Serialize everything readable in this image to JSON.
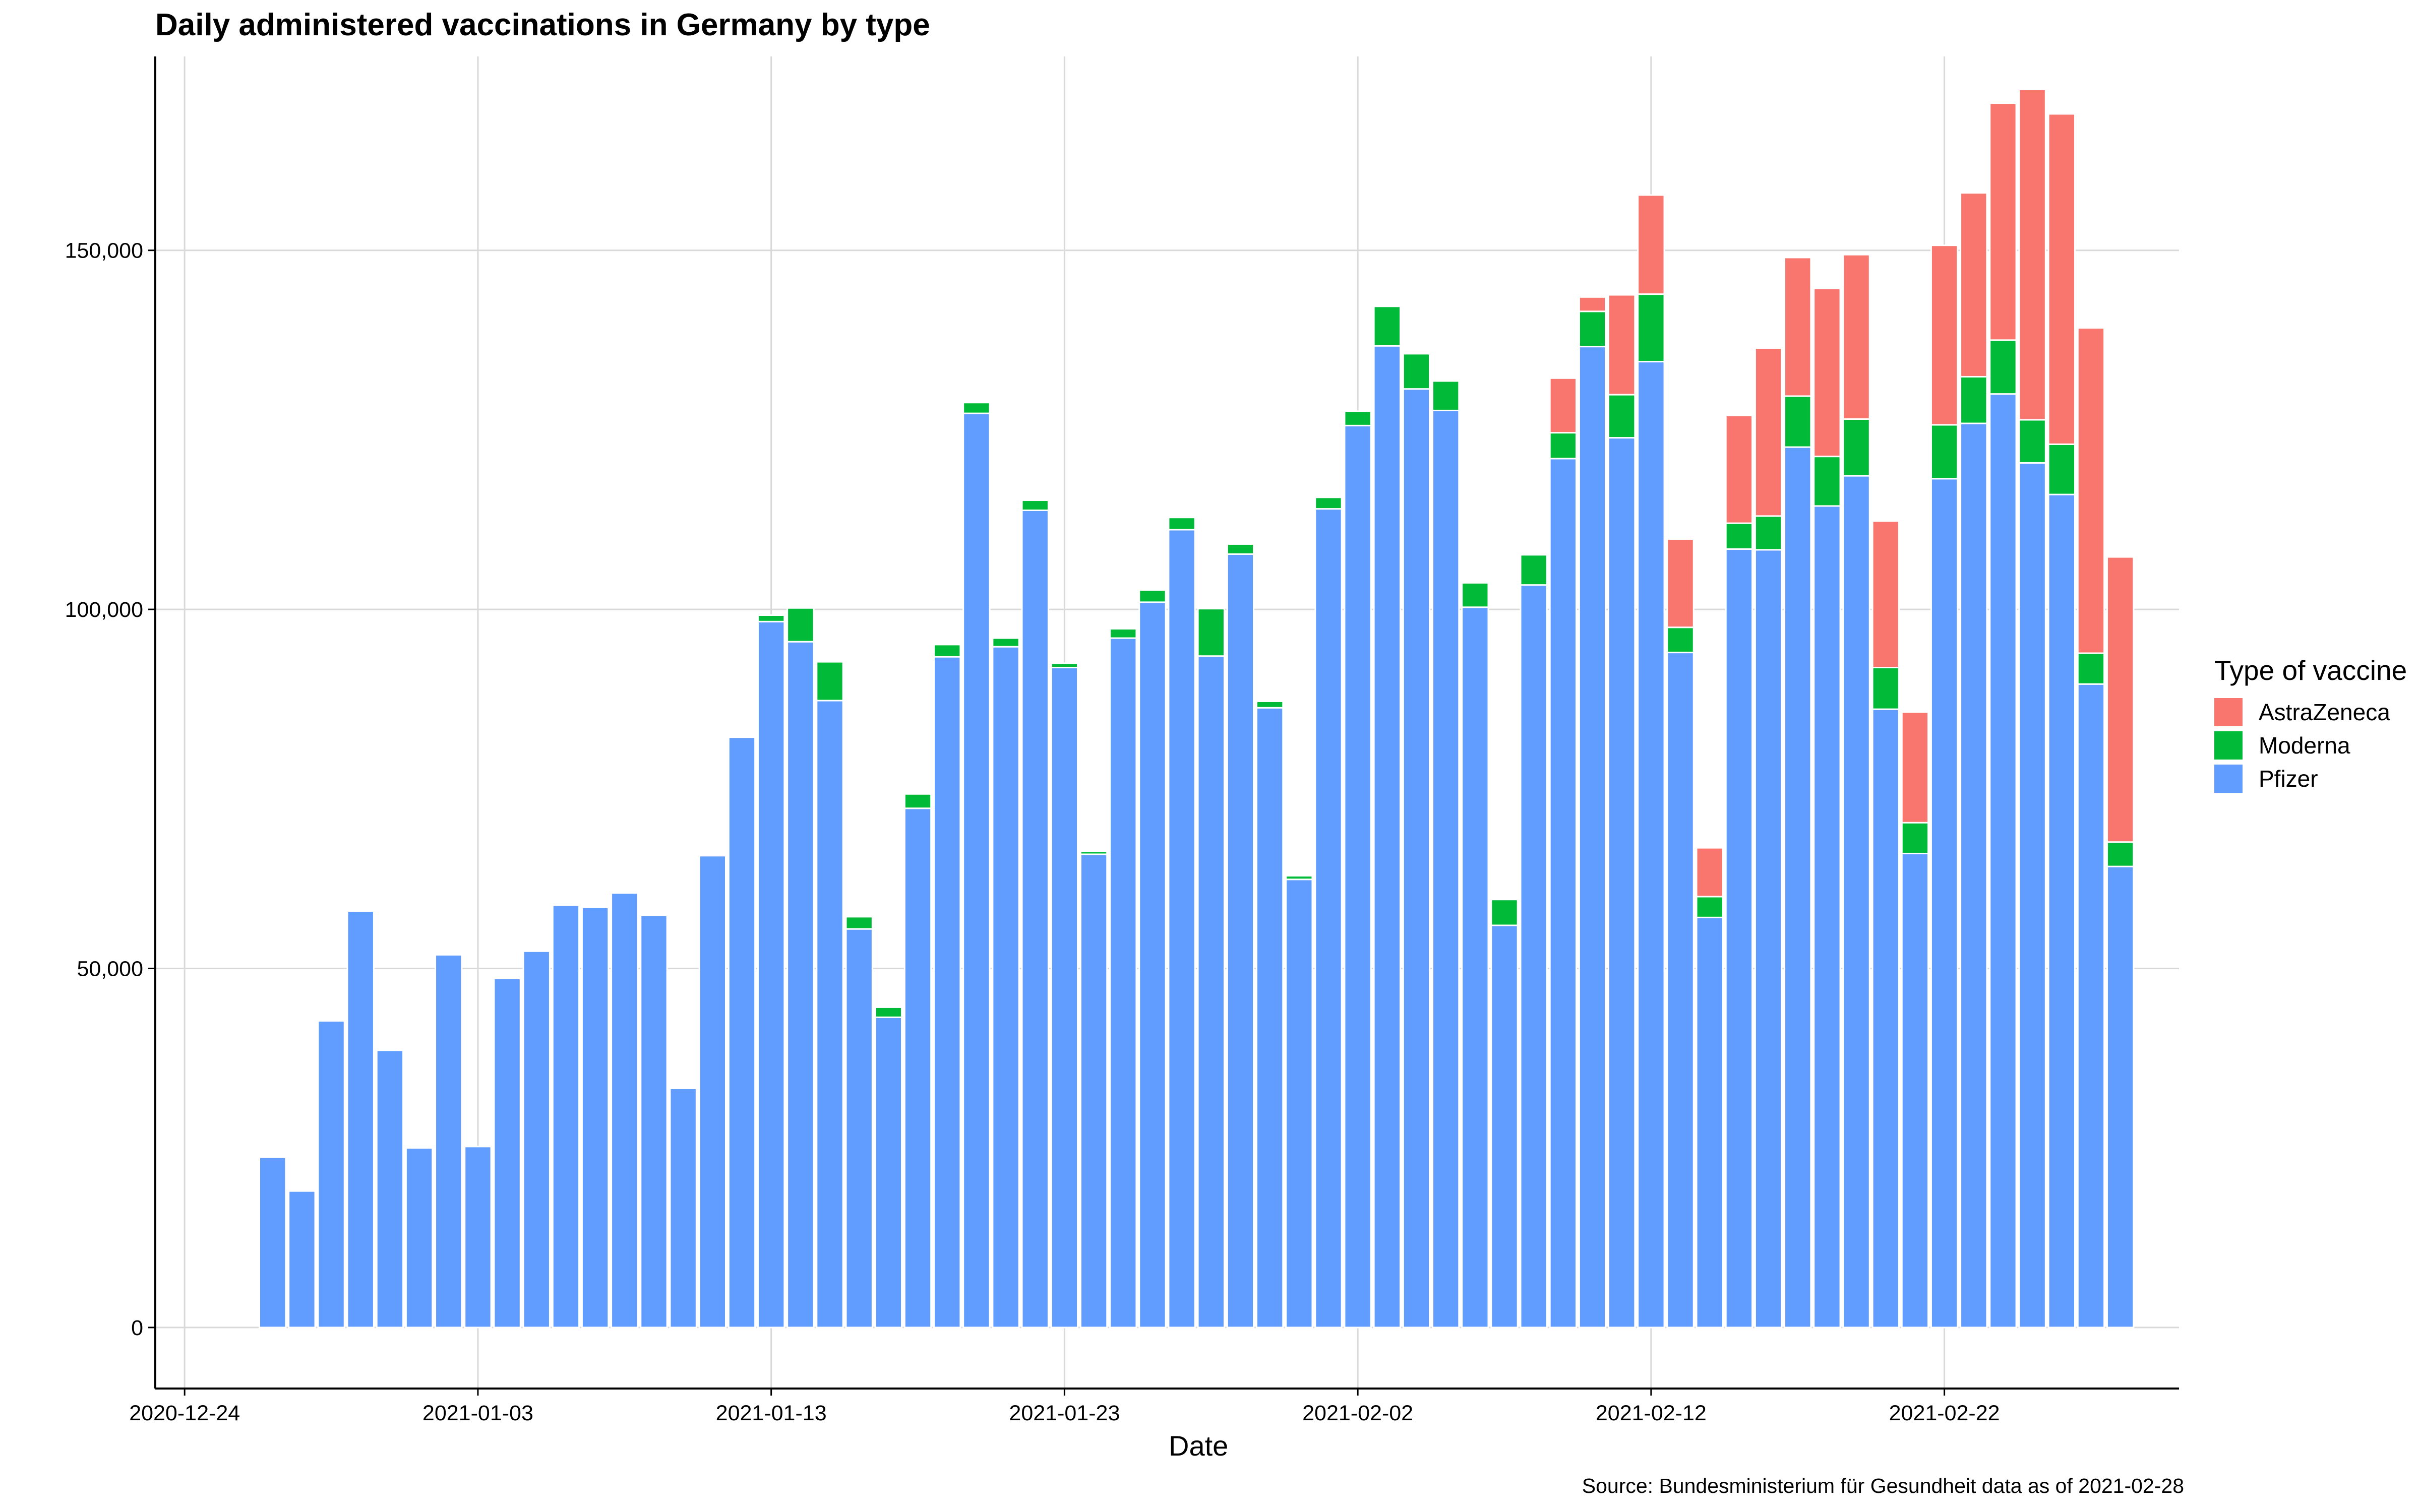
{
  "chart_data": {
    "type": "bar",
    "stacked": true,
    "title": "Daily administered vaccinations in Germany by type",
    "xlabel": "Date",
    "ylabel": "",
    "caption": "Source: Bundesministerium für Gesundheit data as of 2021-02-28",
    "legend_title": "Type of vaccine",
    "legend_position": "right",
    "grid": true,
    "ylim": [
      -8500,
      177000
    ],
    "yticks": [
      0,
      50000,
      100000,
      150000
    ],
    "ytick_labels": [
      "0",
      "50,000",
      "100,000",
      "150,000"
    ],
    "xlim": [
      "2020-12-23",
      "2021-03-02"
    ],
    "xticks": [
      "2020-12-24",
      "2021-01-03",
      "2021-01-13",
      "2021-01-23",
      "2021-02-02",
      "2021-02-12",
      "2021-02-22"
    ],
    "legend": [
      {
        "name": "AstraZeneca",
        "color": "#F8766D"
      },
      {
        "name": "Moderna",
        "color": "#00BA38"
      },
      {
        "name": "Pfizer",
        "color": "#619CFF"
      }
    ],
    "stack_order": [
      "Pfizer",
      "Moderna",
      "AstraZeneca"
    ],
    "categories": [
      "2020-12-27",
      "2020-12-28",
      "2020-12-29",
      "2020-12-30",
      "2020-12-31",
      "2021-01-01",
      "2021-01-02",
      "2021-01-03",
      "2021-01-04",
      "2021-01-05",
      "2021-01-06",
      "2021-01-07",
      "2021-01-08",
      "2021-01-09",
      "2021-01-10",
      "2021-01-11",
      "2021-01-12",
      "2021-01-13",
      "2021-01-14",
      "2021-01-15",
      "2021-01-16",
      "2021-01-17",
      "2021-01-18",
      "2021-01-19",
      "2021-01-20",
      "2021-01-21",
      "2021-01-22",
      "2021-01-23",
      "2021-01-24",
      "2021-01-25",
      "2021-01-26",
      "2021-01-27",
      "2021-01-28",
      "2021-01-29",
      "2021-01-30",
      "2021-01-31",
      "2021-02-01",
      "2021-02-02",
      "2021-02-03",
      "2021-02-04",
      "2021-02-05",
      "2021-02-06",
      "2021-02-07",
      "2021-02-08",
      "2021-02-09",
      "2021-02-10",
      "2021-02-11",
      "2021-02-12",
      "2021-02-13",
      "2021-02-14",
      "2021-02-15",
      "2021-02-16",
      "2021-02-17",
      "2021-02-18",
      "2021-02-19",
      "2021-02-20",
      "2021-02-21",
      "2021-02-22",
      "2021-02-23",
      "2021-02-24",
      "2021-02-25",
      "2021-02-26",
      "2021-02-27",
      "2021-02-28"
    ],
    "series": [
      {
        "name": "Pfizer",
        "color": "#619CFF",
        "values": [
          23700,
          19000,
          42700,
          58000,
          38600,
          25000,
          51900,
          25200,
          48600,
          52400,
          58800,
          58500,
          60500,
          57400,
          33300,
          65700,
          82200,
          98300,
          95500,
          87300,
          55500,
          43200,
          72300,
          93400,
          127300,
          94800,
          113800,
          91900,
          65900,
          96000,
          101000,
          111100,
          93500,
          107700,
          86300,
          62400,
          114000,
          125600,
          136700,
          130700,
          127700,
          100300,
          56000,
          103400,
          121000,
          136600,
          123900,
          134500,
          94000,
          57100,
          108400,
          108300,
          122600,
          114400,
          118600,
          86100,
          66000,
          118200,
          125900,
          130000,
          120400,
          116000,
          89600,
          64200
        ]
      },
      {
        "name": "Moderna",
        "color": "#00BA38",
        "values": [
          0,
          0,
          0,
          0,
          0,
          0,
          0,
          0,
          0,
          0,
          0,
          0,
          0,
          0,
          0,
          0,
          0,
          900,
          4700,
          5400,
          1700,
          1400,
          2000,
          1700,
          1500,
          1200,
          1400,
          600,
          400,
          1300,
          1700,
          1700,
          6600,
          1400,
          900,
          500,
          1600,
          2000,
          5500,
          4900,
          4100,
          3400,
          3600,
          4200,
          3600,
          4900,
          6000,
          9400,
          3500,
          2900,
          3600,
          4700,
          7100,
          6900,
          7900,
          5800,
          4300,
          7500,
          6500,
          7500,
          6000,
          7000,
          4300,
          3400
        ]
      },
      {
        "name": "AstraZeneca",
        "color": "#F8766D",
        "values": [
          0,
          0,
          0,
          0,
          0,
          0,
          0,
          0,
          0,
          0,
          0,
          0,
          0,
          0,
          0,
          0,
          0,
          0,
          0,
          0,
          0,
          0,
          0,
          0,
          0,
          0,
          0,
          0,
          0,
          0,
          0,
          0,
          0,
          0,
          0,
          0,
          0,
          0,
          0,
          0,
          0,
          0,
          0,
          0,
          7600,
          2000,
          13900,
          13800,
          12300,
          6800,
          15000,
          23400,
          19300,
          23400,
          22900,
          20400,
          15400,
          25000,
          25600,
          33000,
          46000,
          46000,
          45300,
          39700
        ]
      }
    ]
  }
}
